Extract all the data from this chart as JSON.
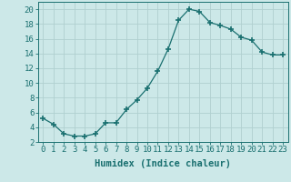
{
  "x": [
    0,
    1,
    2,
    3,
    4,
    5,
    6,
    7,
    8,
    9,
    10,
    11,
    12,
    13,
    14,
    15,
    16,
    17,
    18,
    19,
    20,
    21,
    22,
    23
  ],
  "y": [
    5.2,
    4.4,
    3.1,
    2.8,
    2.8,
    3.1,
    4.6,
    4.6,
    6.4,
    7.7,
    9.3,
    11.6,
    14.6,
    18.5,
    20.0,
    19.7,
    18.2,
    17.8,
    17.3,
    16.2,
    15.8,
    14.2,
    13.8,
    13.8
  ],
  "line_color": "#1a7070",
  "marker": "+",
  "marker_size": 5,
  "marker_lw": 1.2,
  "xlabel": "Humidex (Indice chaleur)",
  "bg_color": "#cce8e8",
  "grid_color": "#b0d0d0",
  "xlim": [
    -0.5,
    23.5
  ],
  "ylim": [
    2,
    21
  ],
  "xtick_labels": [
    "0",
    "1",
    "2",
    "3",
    "4",
    "5",
    "6",
    "7",
    "8",
    "9",
    "10",
    "11",
    "12",
    "13",
    "14",
    "15",
    "16",
    "17",
    "18",
    "19",
    "20",
    "21",
    "22",
    "23"
  ],
  "ytick_values": [
    2,
    4,
    6,
    8,
    10,
    12,
    14,
    16,
    18,
    20
  ],
  "tick_color": "#1a7070",
  "label_color": "#1a7070",
  "xlabel_fontsize": 7.5,
  "tick_fontsize": 6.5
}
